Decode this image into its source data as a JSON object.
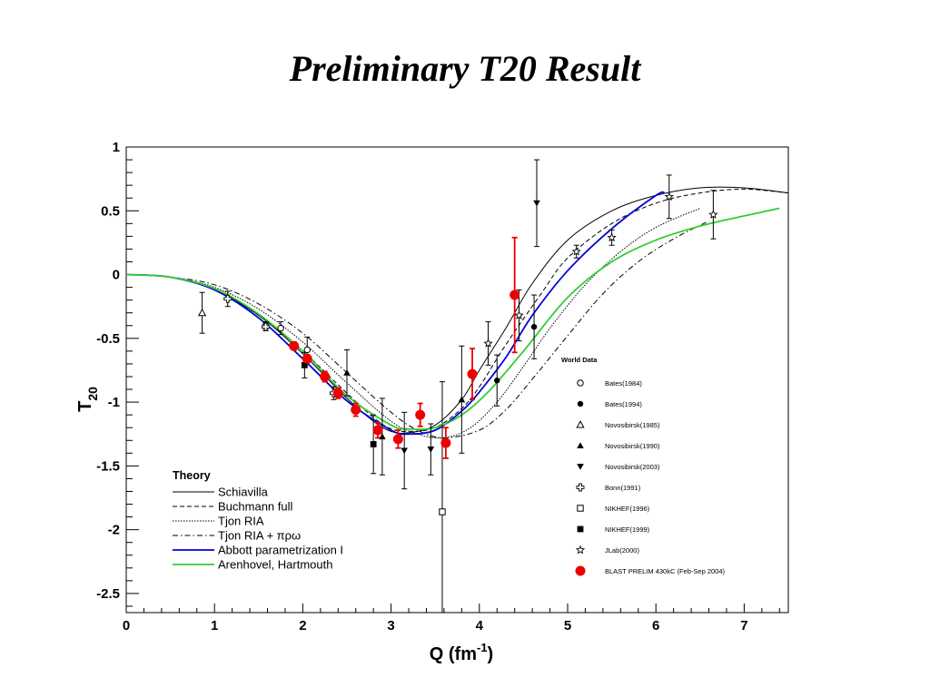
{
  "slide": {
    "title": "Preliminary T20 Result"
  },
  "chart_data": {
    "type": "scatter",
    "xlabel": "Q (fm",
    "xlabel_sup": "-1",
    "xlabel_close": ")",
    "ylabel": "T",
    "ylabel_sub": "20",
    "xlim": [
      0,
      7.5
    ],
    "ylim": [
      -2.65,
      1.0
    ],
    "x_ticks": [
      0,
      1,
      2,
      3,
      4,
      5,
      6,
      7
    ],
    "y_ticks": [
      1,
      0.5,
      0,
      -0.5,
      -1,
      -1.5,
      -2,
      -2.5
    ],
    "y_tick_labels": [
      "1",
      "0.5",
      "0",
      "-0.5",
      "-1",
      "-1.5",
      "-2",
      "-2.5"
    ],
    "theory_legend_title": "Theory",
    "theory_curves": [
      {
        "name": "Schiavilla",
        "color": "#000000",
        "style": "solid",
        "points": [
          [
            0,
            0
          ],
          [
            0.5,
            -0.02
          ],
          [
            1,
            -0.12
          ],
          [
            1.5,
            -0.32
          ],
          [
            2,
            -0.62
          ],
          [
            2.5,
            -0.97
          ],
          [
            2.8,
            -1.15
          ],
          [
            3,
            -1.23
          ],
          [
            3.2,
            -1.24
          ],
          [
            3.5,
            -1.18
          ],
          [
            3.8,
            -0.98
          ],
          [
            4,
            -0.75
          ],
          [
            4.3,
            -0.42
          ],
          [
            4.6,
            -0.07
          ],
          [
            5,
            0.27
          ],
          [
            5.5,
            0.5
          ],
          [
            6,
            0.62
          ],
          [
            6.5,
            0.68
          ],
          [
            7,
            0.68
          ],
          [
            7.5,
            0.64
          ]
        ]
      },
      {
        "name": "Buchmann full",
        "color": "#000000",
        "style": "dashed",
        "points": [
          [
            0,
            0
          ],
          [
            0.5,
            -0.02
          ],
          [
            1,
            -0.12
          ],
          [
            1.5,
            -0.32
          ],
          [
            2,
            -0.6
          ],
          [
            2.5,
            -0.93
          ],
          [
            2.8,
            -1.12
          ],
          [
            3,
            -1.21
          ],
          [
            3.2,
            -1.23
          ],
          [
            3.5,
            -1.2
          ],
          [
            3.8,
            -1.05
          ],
          [
            4,
            -0.88
          ],
          [
            4.3,
            -0.55
          ],
          [
            4.7,
            -0.15
          ],
          [
            5,
            0.13
          ],
          [
            5.5,
            0.4
          ],
          [
            6,
            0.56
          ],
          [
            6.5,
            0.64
          ],
          [
            7,
            0.67
          ],
          [
            7.5,
            0.64
          ]
        ]
      },
      {
        "name": "Tjon RIA",
        "color": "#000000",
        "style": "dotted",
        "points": [
          [
            0,
            0
          ],
          [
            0.5,
            -0.02
          ],
          [
            1,
            -0.1
          ],
          [
            1.5,
            -0.27
          ],
          [
            2,
            -0.53
          ],
          [
            2.5,
            -0.85
          ],
          [
            3,
            -1.15
          ],
          [
            3.3,
            -1.25
          ],
          [
            3.6,
            -1.28
          ],
          [
            3.9,
            -1.2
          ],
          [
            4.2,
            -1.0
          ],
          [
            4.5,
            -0.72
          ],
          [
            4.8,
            -0.42
          ],
          [
            5.2,
            -0.08
          ],
          [
            5.6,
            0.18
          ],
          [
            6,
            0.37
          ],
          [
            6.5,
            0.52
          ]
        ]
      },
      {
        "name": "Tjon RIA + πρω",
        "color": "#000000",
        "style": "dashdot",
        "points": [
          [
            0,
            0
          ],
          [
            0.5,
            -0.02
          ],
          [
            1,
            -0.08
          ],
          [
            1.5,
            -0.23
          ],
          [
            2,
            -0.46
          ],
          [
            2.5,
            -0.77
          ],
          [
            3,
            -1.08
          ],
          [
            3.3,
            -1.22
          ],
          [
            3.6,
            -1.28
          ],
          [
            4,
            -1.22
          ],
          [
            4.3,
            -1.06
          ],
          [
            4.6,
            -0.82
          ],
          [
            5,
            -0.48
          ],
          [
            5.4,
            -0.15
          ],
          [
            5.8,
            0.1
          ],
          [
            6.2,
            0.28
          ],
          [
            6.6,
            0.42
          ]
        ]
      },
      {
        "name": "Abbott parametrization I",
        "color": "#0000dd",
        "style": "solid",
        "points": [
          [
            0,
            0
          ],
          [
            0.5,
            -0.02
          ],
          [
            1,
            -0.12
          ],
          [
            1.5,
            -0.34
          ],
          [
            2,
            -0.66
          ],
          [
            2.5,
            -0.99
          ],
          [
            3,
            -1.22
          ],
          [
            3.2,
            -1.25
          ],
          [
            3.5,
            -1.22
          ],
          [
            3.8,
            -1.07
          ],
          [
            4,
            -0.92
          ],
          [
            4.3,
            -0.65
          ],
          [
            4.6,
            -0.32
          ],
          [
            5,
            0.03
          ],
          [
            5.5,
            0.36
          ],
          [
            6,
            0.62
          ],
          [
            6.1,
            0.64
          ]
        ]
      },
      {
        "name": "Arenhovel, Hartmouth",
        "color": "#33cc33",
        "style": "solid",
        "points": [
          [
            0,
            0
          ],
          [
            0.5,
            -0.02
          ],
          [
            1,
            -0.11
          ],
          [
            1.5,
            -0.31
          ],
          [
            2,
            -0.6
          ],
          [
            2.5,
            -0.95
          ],
          [
            3,
            -1.18
          ],
          [
            3.2,
            -1.21
          ],
          [
            3.5,
            -1.2
          ],
          [
            3.8,
            -1.1
          ],
          [
            4.1,
            -0.92
          ],
          [
            4.5,
            -0.6
          ],
          [
            5,
            -0.18
          ],
          [
            5.5,
            0.1
          ],
          [
            6,
            0.27
          ],
          [
            6.5,
            0.38
          ],
          [
            7,
            0.46
          ],
          [
            7.4,
            0.52
          ]
        ]
      }
    ],
    "world_data_title": "World Data",
    "data_sets": [
      {
        "name": "Bates(1984)",
        "marker": "circle-open",
        "color": "#000000",
        "points": [
          [
            1.58,
            -0.4,
            0.03
          ],
          [
            1.75,
            -0.42,
            0.05
          ],
          [
            2.05,
            -0.59,
            0.1
          ]
        ]
      },
      {
        "name": "Bates(1994)",
        "marker": "circle-filled",
        "color": "#000000",
        "points": [
          [
            4.2,
            -0.83,
            0.2
          ],
          [
            4.62,
            -0.41,
            0.25
          ]
        ]
      },
      {
        "name": "Novosibirsk(1985)",
        "marker": "triangle-open",
        "color": "#000000",
        "points": [
          [
            0.86,
            -0.3,
            0.16
          ]
        ]
      },
      {
        "name": "Novosibirsk(1990)",
        "marker": "triangle-filled",
        "color": "#000000",
        "points": [
          [
            2.5,
            -0.77,
            0.18
          ],
          [
            2.9,
            -1.27,
            0.3
          ],
          [
            3.8,
            -0.98,
            0.42
          ]
        ]
      },
      {
        "name": "Novosibirsk(2003)",
        "marker": "triangledown-filled",
        "color": "#000000",
        "points": [
          [
            3.15,
            -1.38,
            0.3
          ],
          [
            3.45,
            -1.37,
            0.2
          ],
          [
            4.65,
            0.56,
            0.34
          ]
        ]
      },
      {
        "name": "Bonn(1991)",
        "marker": "cross-open",
        "color": "#000000",
        "points": [
          [
            1.15,
            -0.19,
            0.06
          ],
          [
            1.58,
            -0.41,
            0.03
          ],
          [
            2.35,
            -0.93,
            0.05
          ]
        ]
      },
      {
        "name": "NIKHEF(1996)",
        "marker": "square-open",
        "color": "#000000",
        "points": [
          [
            3.58,
            -1.86,
            1.02
          ]
        ]
      },
      {
        "name": "NIKHEF(1999)",
        "marker": "square-filled",
        "color": "#000000",
        "points": [
          [
            2.02,
            -0.71,
            0.1
          ],
          [
            2.8,
            -1.33,
            0.23
          ]
        ]
      },
      {
        "name": "JLab(2000)",
        "marker": "star-open",
        "color": "#000000",
        "points": [
          [
            4.1,
            -0.54,
            0.17
          ],
          [
            4.45,
            -0.32,
            0.2
          ],
          [
            5.1,
            0.18,
            0.05
          ],
          [
            5.5,
            0.29,
            0.06
          ],
          [
            6.15,
            0.61,
            0.17
          ],
          [
            6.65,
            0.47,
            0.19
          ]
        ]
      },
      {
        "name": "BLAST PRELIM 430kC (Feb-Sep 2004)",
        "marker": "circle-red",
        "color": "#ee0000",
        "points": [
          [
            1.9,
            -0.56,
            0.03
          ],
          [
            2.05,
            -0.66,
            0.03
          ],
          [
            2.25,
            -0.8,
            0.04
          ],
          [
            2.4,
            -0.93,
            0.04
          ],
          [
            2.6,
            -1.06,
            0.05
          ],
          [
            2.85,
            -1.22,
            0.06
          ],
          [
            3.08,
            -1.29,
            0.07
          ],
          [
            3.33,
            -1.1,
            0.09
          ],
          [
            3.62,
            -1.32,
            0.12
          ],
          [
            3.92,
            -0.78,
            0.2
          ],
          [
            4.4,
            -0.16,
            0.45
          ]
        ]
      }
    ],
    "colors": {
      "axis": "#000000",
      "blast": "#ee0000",
      "abbott": "#0000dd",
      "arenhovel": "#33cc33"
    }
  }
}
